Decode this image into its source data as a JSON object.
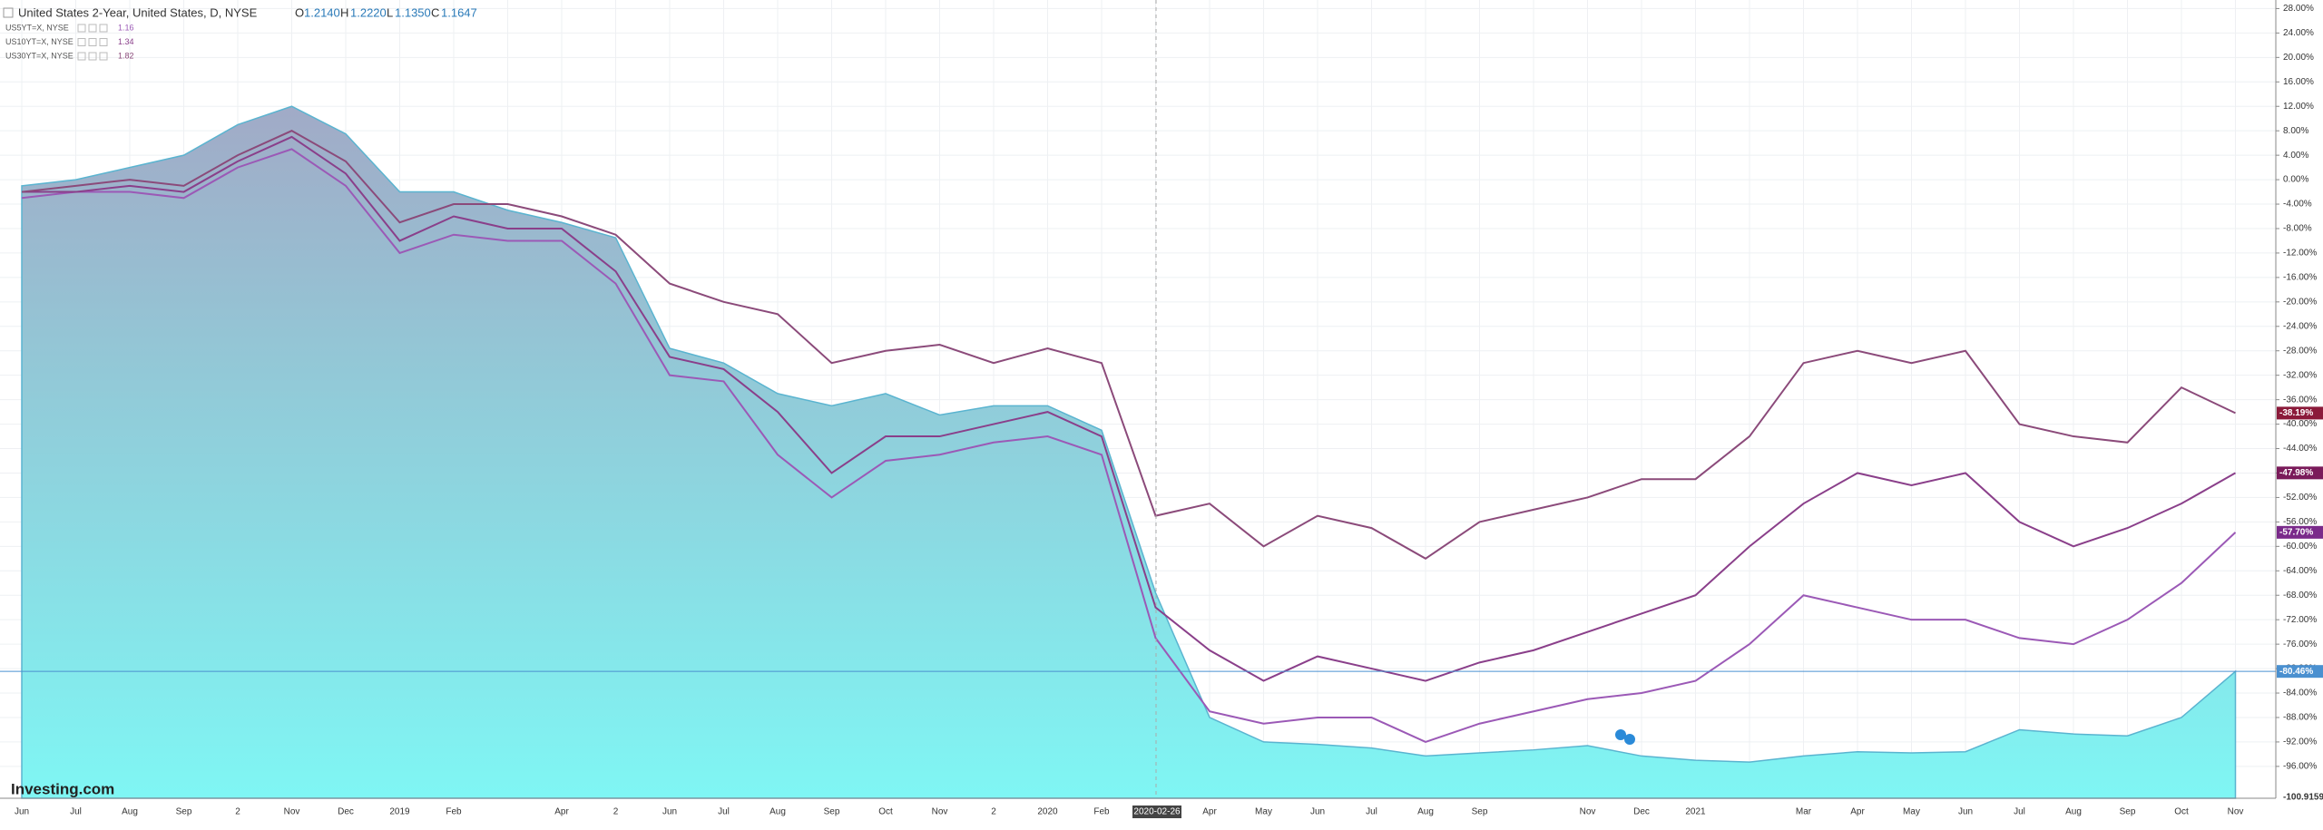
{
  "chart_data": {
    "type": "line",
    "header": {
      "title": "United States 2-Year, United States, D, NYSE",
      "o_label": "O",
      "open": "1.2140",
      "h_label": "H",
      "high": "1.2220",
      "l_label": "L",
      "low": "1.1350",
      "c_label": "C",
      "close": "1.1647"
    },
    "logo": "Investing.com",
    "crosshair_label": "2020-02-26",
    "categories": [
      "Jun",
      "Jul",
      "Aug",
      "Sep",
      "2",
      "Nov",
      "Dec",
      "2019",
      "Feb",
      null,
      "Apr",
      "2",
      "Jun",
      "Jul",
      "Aug",
      "Sep",
      "Oct",
      "Nov",
      "2",
      "2020",
      "Feb",
      null,
      "Apr",
      "May",
      "Jun",
      "Jul",
      "Aug",
      "Sep",
      null,
      "Nov",
      "Dec",
      "2021",
      null,
      "Mar",
      "Apr",
      "May",
      "Jun",
      "Jul",
      "Aug",
      "Sep",
      "Oct",
      "Nov"
    ],
    "ylim": [
      -100.9159,
      29.4
    ],
    "yticks": [
      {
        "value": 28,
        "label": "28.00%"
      },
      {
        "value": 24,
        "label": "24.00%"
      },
      {
        "value": 20,
        "label": "20.00%"
      },
      {
        "value": 16,
        "label": "16.00%"
      },
      {
        "value": 12,
        "label": "12.00%"
      },
      {
        "value": 8,
        "label": "8.00%"
      },
      {
        "value": 4,
        "label": "4.00%"
      },
      {
        "value": 0,
        "label": "0.00%"
      },
      {
        "value": -4,
        "label": "-4.00%"
      },
      {
        "value": -8,
        "label": "-8.00%"
      },
      {
        "value": -12,
        "label": "-12.00%"
      },
      {
        "value": -16,
        "label": "-16.00%"
      },
      {
        "value": -20,
        "label": "-20.00%"
      },
      {
        "value": -24,
        "label": "-24.00%"
      },
      {
        "value": -28,
        "label": "-28.00%"
      },
      {
        "value": -32,
        "label": "-32.00%"
      },
      {
        "value": -36,
        "label": "-36.00%"
      },
      {
        "value": -40,
        "label": "-40.00%"
      },
      {
        "value": -44,
        "label": "-44.00%"
      },
      {
        "value": -48,
        "label": "-48.00%"
      },
      {
        "value": -52,
        "label": "-52.00%"
      },
      {
        "value": -56,
        "label": "-56.00%"
      },
      {
        "value": -60,
        "label": "-60.00%"
      },
      {
        "value": -64,
        "label": "-64.00%"
      },
      {
        "value": -68,
        "label": "-68.00%"
      },
      {
        "value": -72,
        "label": "-72.00%"
      },
      {
        "value": -76,
        "label": "-76.00%"
      },
      {
        "value": -80,
        "label": "-80.00%"
      },
      {
        "value": -84,
        "label": "-84.00%"
      },
      {
        "value": -88,
        "label": "-88.00%"
      },
      {
        "value": -92,
        "label": "-92.00%"
      },
      {
        "value": -96,
        "label": "-96.00%"
      }
    ],
    "grid": true,
    "series": [
      {
        "name": "United States 2-Year, United States, D, NYSE",
        "kind": "area",
        "color": "#5ab4d0",
        "label_color": "#4a90d0",
        "values": [
          -1,
          0,
          2,
          4,
          9,
          12,
          7.5,
          -2,
          -2,
          -5,
          -7,
          -9.5,
          -27.6,
          -30,
          -35,
          -37,
          -35,
          -38.5,
          -37,
          -37,
          -41,
          -67.6,
          -88,
          -92,
          -92.4,
          -93,
          -94.3,
          -93.8,
          -93.3,
          -92.6,
          -94.3,
          -95,
          -95.3,
          -94.3,
          -93.6,
          -93.8,
          -93.6,
          -90,
          -90.7,
          -91,
          -88,
          -80.46
        ],
        "value_labels": [
          null,
          null,
          null,
          null,
          null,
          null,
          null,
          null,
          null,
          null,
          null,
          null,
          null,
          null,
          null,
          null,
          null,
          null,
          null,
          null,
          null,
          null,
          null,
          null,
          null,
          null,
          null,
          null,
          null,
          null,
          null,
          null,
          null,
          null,
          null,
          null,
          null,
          null,
          null,
          null,
          null,
          "-80.46%"
        ]
      },
      {
        "name": "US5YT=X, NYSE",
        "kind": "line",
        "legend_value": "1.16",
        "color": "#9b59b6",
        "label_color": "#7a2a8a",
        "values": [
          -3,
          -2,
          -2,
          -3,
          2,
          5,
          -1,
          -12,
          -9,
          -10,
          -10,
          -17,
          -32,
          -33,
          -45,
          -52,
          -46,
          -45,
          -43,
          -42,
          -45,
          -75,
          -87,
          -89,
          -88,
          -88,
          -92,
          -89,
          -87,
          -85,
          -84,
          -82,
          -76,
          -68,
          -70,
          -72,
          -72,
          -75,
          -76,
          -72,
          -66,
          -57.7
        ],
        "value_labels": [
          null,
          null,
          null,
          null,
          null,
          null,
          null,
          null,
          null,
          null,
          null,
          null,
          null,
          null,
          null,
          null,
          null,
          null,
          null,
          null,
          null,
          null,
          null,
          null,
          null,
          null,
          null,
          null,
          null,
          null,
          null,
          null,
          null,
          null,
          null,
          null,
          null,
          null,
          null,
          null,
          null,
          "-57.70%"
        ]
      },
      {
        "name": "US10YT=X, NYSE",
        "kind": "line",
        "legend_value": "1.34",
        "color": "#8a3f8a",
        "label_color": "#7a1a5a",
        "values": [
          -2,
          -2,
          -1,
          -2,
          3,
          7,
          1,
          -10,
          -6,
          -8,
          -8,
          -15,
          -29,
          -31,
          -38,
          -48,
          -42,
          -42,
          -40,
          -38,
          -42,
          -70,
          -77,
          -82,
          -78,
          -80,
          -82,
          -79,
          -77,
          -74,
          -71,
          -68,
          -60,
          -53,
          -48,
          -50,
          -48,
          -56,
          -60,
          -57,
          -53,
          -47.98
        ],
        "value_labels": [
          null,
          null,
          null,
          null,
          null,
          null,
          null,
          null,
          null,
          null,
          null,
          null,
          null,
          null,
          null,
          null,
          null,
          null,
          null,
          null,
          null,
          null,
          null,
          null,
          null,
          null,
          null,
          null,
          null,
          null,
          null,
          null,
          null,
          null,
          null,
          null,
          null,
          null,
          null,
          null,
          null,
          "-47.98%"
        ]
      },
      {
        "name": "US30YT=X, NYSE",
        "kind": "line",
        "legend_value": "1.82",
        "color": "#8b4a7a",
        "label_color": "#8b1a3a",
        "values": [
          -2,
          -1,
          0,
          -1,
          4,
          8,
          3,
          -7,
          -4,
          -4,
          -6,
          -9,
          -17,
          -20,
          -22,
          -30,
          -28,
          -27,
          -30,
          -27.6,
          -30,
          -55,
          -53,
          -60,
          -55,
          -57,
          -62,
          -56,
          -54,
          -52,
          -49,
          -49,
          -42,
          -30,
          -28,
          -30,
          -28,
          -40,
          -42,
          -43,
          -34,
          -38.19
        ],
        "value_labels": [
          null,
          null,
          null,
          null,
          null,
          null,
          null,
          null,
          null,
          null,
          null,
          null,
          null,
          null,
          null,
          null,
          null,
          null,
          null,
          null,
          null,
          null,
          null,
          null,
          null,
          null,
          null,
          null,
          null,
          null,
          null,
          null,
          null,
          null,
          null,
          null,
          null,
          null,
          null,
          null,
          null,
          "-38.19%"
        ]
      }
    ]
  }
}
